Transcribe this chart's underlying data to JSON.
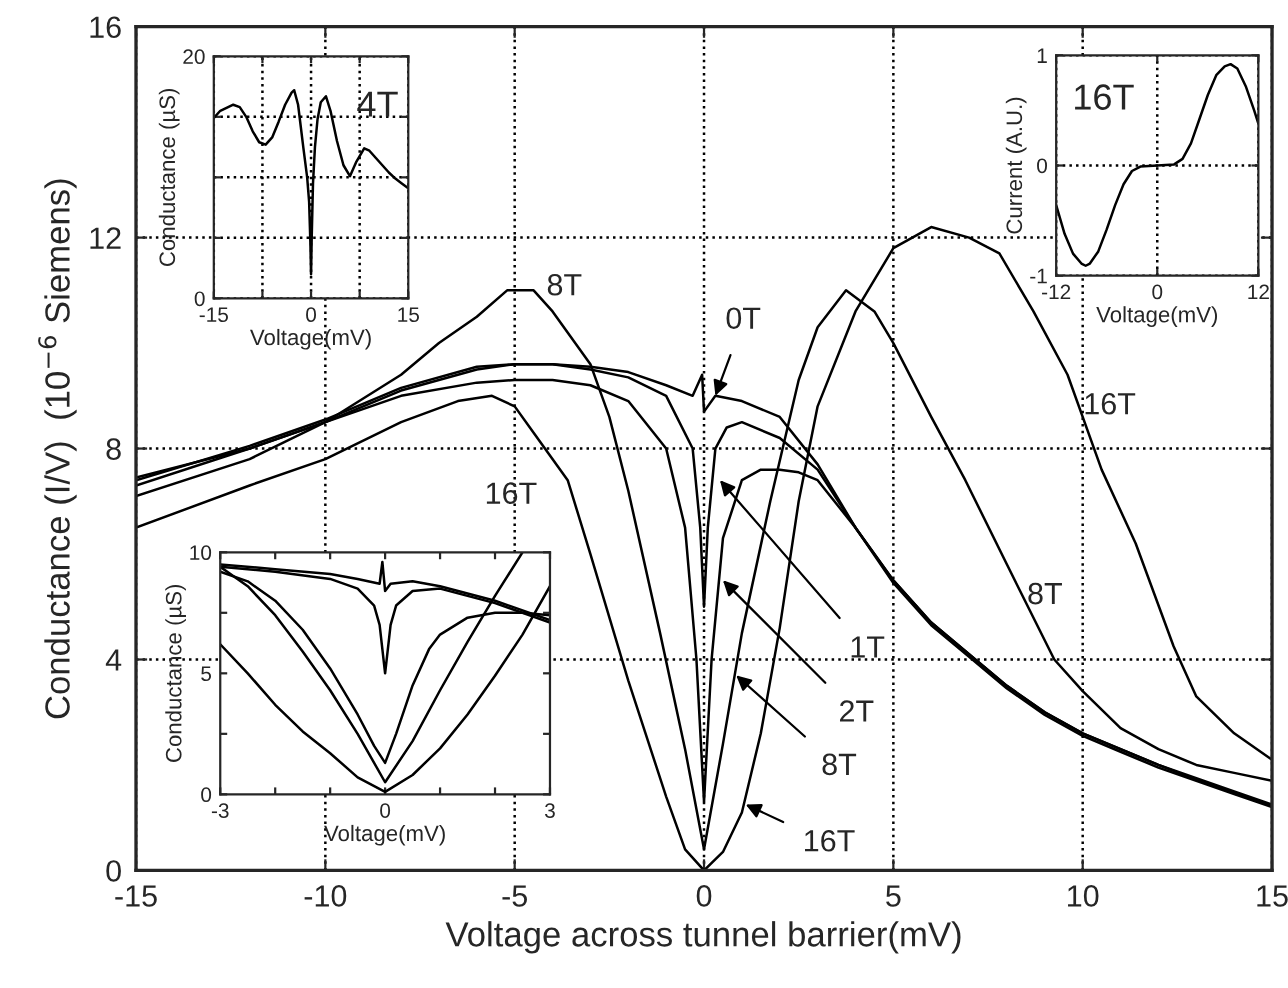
{
  "chart_data": [
    {
      "type": "line",
      "xlabel": "Voltage across tunnel barrier(mV)",
      "ylabel": "Conductance (I/V)  (10$^{−6}$ Siemens)",
      "xlim": [
        -15,
        15
      ],
      "ylim": [
        0,
        16
      ],
      "xticks": [
        -15,
        -10,
        -5,
        0,
        5,
        10,
        15
      ],
      "yticks": [
        0,
        4,
        8,
        12,
        16
      ],
      "grid": true,
      "series": [
        {
          "color": "#000000",
          "x": [
            -15,
            -12,
            -10,
            -8,
            -6,
            -5,
            -4,
            -3,
            -2,
            -1,
            -0.3,
            -0.05,
            0,
            0.3,
            1,
            2,
            3,
            4,
            5,
            6,
            7,
            8,
            9,
            10,
            11,
            12,
            13,
            14,
            15
          ],
          "values": [
            7.45,
            8.0,
            8.5,
            9.1,
            9.5,
            9.6,
            9.6,
            9.55,
            9.45,
            9.2,
            9.0,
            9.4,
            8.7,
            9.0,
            8.9,
            8.6,
            7.7,
            6.5,
            5.5,
            4.7,
            4.1,
            3.5,
            3.0,
            2.6,
            2.3,
            2.0,
            1.75,
            1.5,
            1.25
          ]
        },
        {
          "color": "#000000",
          "x": [
            -15,
            -12,
            -10,
            -8,
            -6,
            -5,
            -4,
            -3,
            -2,
            -1,
            -0.3,
            -0.1,
            0,
            0.1,
            0.3,
            0.6,
            1,
            2,
            3,
            4,
            5,
            6,
            7,
            8,
            9,
            10,
            11,
            12,
            13,
            14,
            15
          ],
          "values": [
            7.4,
            8.05,
            8.55,
            9.15,
            9.55,
            9.6,
            9.6,
            9.5,
            9.35,
            9.0,
            8.0,
            6.5,
            5.0,
            6.5,
            8.0,
            8.4,
            8.5,
            8.2,
            7.6,
            6.5,
            5.5,
            4.7,
            4.1,
            3.5,
            3.0,
            2.6,
            2.3,
            2.0,
            1.72,
            1.47,
            1.22
          ]
        },
        {
          "color": "#000000",
          "x": [
            -15,
            -12,
            -10,
            -8,
            -6,
            -5,
            -4,
            -3,
            -2,
            -1,
            -0.5,
            -0.2,
            0,
            0.2,
            0.5,
            1,
            1.5,
            2,
            2.5,
            3,
            4,
            5,
            6,
            7,
            8,
            9,
            10,
            11,
            12,
            13,
            14,
            15
          ],
          "values": [
            7.3,
            8.0,
            8.5,
            9.0,
            9.25,
            9.3,
            9.3,
            9.2,
            8.9,
            8.0,
            6.5,
            4.0,
            1.3,
            4.0,
            6.3,
            7.4,
            7.6,
            7.6,
            7.55,
            7.4,
            6.5,
            5.45,
            4.65,
            4.05,
            3.45,
            2.95,
            2.55,
            2.25,
            1.95,
            1.7,
            1.45,
            1.2
          ]
        },
        {
          "color": "#000000",
          "x": [
            -15,
            -12,
            -10,
            -8,
            -7,
            -6,
            -5.2,
            -4.5,
            -4,
            -3,
            -2.5,
            -2,
            -1.16,
            -0.5,
            0,
            0.5,
            1,
            1.75,
            2.5,
            3,
            3.75,
            4.5,
            5,
            6,
            6.9,
            8,
            9.25,
            10,
            11,
            12,
            13,
            14,
            15
          ],
          "values": [
            7.1,
            7.8,
            8.5,
            9.4,
            10.0,
            10.5,
            11.0,
            11.0,
            10.6,
            9.6,
            8.6,
            7.2,
            4.5,
            2.3,
            0.4,
            2.4,
            4.5,
            7.0,
            9.3,
            10.3,
            11.0,
            10.6,
            10.0,
            8.6,
            7.4,
            5.8,
            4.0,
            3.4,
            2.7,
            2.3,
            2.0,
            1.85,
            1.7
          ]
        },
        {
          "color": "#000000",
          "x": [
            -15,
            -12,
            -10,
            -8,
            -6.5,
            -5.6,
            -5,
            -4.5,
            -3.6,
            -3,
            -2,
            -1,
            -0.5,
            0,
            0.5,
            1,
            1.5,
            2,
            2.5,
            3,
            4,
            5,
            6,
            7,
            7.8,
            8.7,
            9.6,
            10.5,
            11.4,
            12.4,
            13,
            14,
            15
          ],
          "values": [
            6.5,
            7.3,
            7.8,
            8.5,
            8.9,
            9.0,
            8.8,
            8.3,
            7.4,
            6.0,
            3.6,
            1.4,
            0.4,
            0.0,
            0.35,
            1.1,
            2.6,
            4.6,
            7.0,
            8.8,
            10.6,
            11.8,
            12.2,
            12.0,
            11.7,
            10.6,
            9.4,
            7.6,
            6.2,
            4.25,
            3.3,
            2.6,
            2.1
          ]
        }
      ],
      "annotations": [
        "8T",
        {
          "text": "0T",
          "x": 0.3,
          "y": 9.0
        },
        "16T",
        "16T",
        "8T",
        {
          "text": "1T",
          "x": 0.42,
          "y": 7.4
        },
        {
          "text": "2T",
          "x": 0.5,
          "y": 5.5
        },
        {
          "text": "8T",
          "x": 0.85,
          "y": 3.7
        },
        {
          "text": "16T",
          "x": 1.1,
          "y": 1.25
        }
      ]
    },
    {
      "type": "line",
      "xlabel": "Voltage(mV)",
      "ylabel": "Conductance (µS)",
      "xlim": [
        -15,
        15
      ],
      "ylim": [
        0,
        20
      ],
      "xticks": [
        -15,
        {
          "value": -7.5,
          "label": null
        },
        0,
        {
          "value": 7.5,
          "label": null
        },
        15
      ],
      "yticks": [
        0,
        {
          "value": 5,
          "label": null
        },
        {
          "value": 10,
          "label": null
        },
        {
          "value": 15,
          "label": null
        },
        20
      ],
      "grid": true,
      "series": [
        {
          "color": "#000000",
          "x": [
            -15,
            -14,
            -12,
            -11,
            -10,
            -9,
            -8,
            -7,
            -6,
            -5,
            -4,
            -3,
            -2.6,
            -2,
            -1.2,
            -0.6,
            -0.3,
            -0.1,
            0,
            0.1,
            0.3,
            0.6,
            1,
            1.5,
            2.3,
            3,
            4,
            5,
            6,
            7,
            8.2,
            9,
            10,
            11,
            12,
            13,
            14,
            15
          ],
          "values": [
            14.9,
            15.5,
            16.0,
            15.8,
            15.0,
            13.8,
            12.9,
            12.7,
            13.3,
            14.6,
            16.0,
            17.0,
            17.2,
            16.0,
            12.5,
            10.0,
            8.0,
            4.5,
            2.0,
            5.0,
            9.5,
            12.5,
            14.8,
            16.2,
            16.7,
            15.5,
            13.0,
            11.0,
            10.1,
            11.3,
            12.4,
            12.2,
            11.6,
            11.0,
            10.4,
            9.9,
            9.5,
            9.1
          ]
        }
      ],
      "annotations": [
        "4T"
      ]
    },
    {
      "type": "line",
      "xlabel": "Voltage(mV)",
      "ylabel": "Current (A.U.)",
      "xlim": [
        -12,
        12
      ],
      "ylim": [
        -1,
        1
      ],
      "xticks": [
        -12,
        0,
        12
      ],
      "yticks": [
        -1,
        0,
        1
      ],
      "grid": true,
      "series": [
        {
          "color": "#000000",
          "x": [
            -12,
            -11,
            -10,
            -9,
            -8.5,
            -8,
            -7,
            -6,
            -5,
            -4,
            -3,
            -2,
            0,
            2,
            3,
            4,
            5,
            6,
            7,
            8,
            8.7,
            9.5,
            10.5,
            11.5,
            12
          ],
          "values": [
            -0.36,
            -0.62,
            -0.8,
            -0.89,
            -0.91,
            -0.89,
            -0.78,
            -0.58,
            -0.36,
            -0.17,
            -0.05,
            -0.01,
            0,
            0.01,
            0.06,
            0.2,
            0.42,
            0.64,
            0.82,
            0.9,
            0.92,
            0.88,
            0.72,
            0.5,
            0.38
          ]
        }
      ],
      "annotations": [
        "16T"
      ]
    },
    {
      "type": "line",
      "xlabel": "Voltage(mV)",
      "ylabel": "Conductance (µS)",
      "xlim": [
        -3,
        3
      ],
      "ylim": [
        0,
        10
      ],
      "xticks": [
        -3,
        {
          "value": -2,
          "label": null
        },
        {
          "value": -1,
          "label": null
        },
        0,
        {
          "value": 1,
          "label": null
        },
        {
          "value": 2,
          "label": null
        },
        3
      ],
      "yticks": [
        0,
        {
          "value": 2.5,
          "label": null
        },
        5,
        {
          "value": 7.5,
          "label": null
        },
        10
      ],
      "series": [
        {
          "color": "#000000",
          "x": [
            -3,
            -2,
            -1,
            -0.5,
            -0.1,
            -0.05,
            0,
            0.1,
            0.5,
            1,
            2,
            3
          ],
          "values": [
            9.5,
            9.3,
            9.1,
            8.9,
            8.7,
            9.6,
            8.4,
            8.7,
            8.8,
            8.6,
            8.0,
            7.2
          ]
        },
        {
          "color": "#000000",
          "x": [
            -3,
            -2,
            -1,
            -0.5,
            -0.2,
            -0.1,
            0,
            0.1,
            0.2,
            0.5,
            1,
            2,
            3
          ],
          "values": [
            9.4,
            9.2,
            8.9,
            8.5,
            7.8,
            7.0,
            5.0,
            7.0,
            7.8,
            8.4,
            8.5,
            7.9,
            7.1
          ]
        },
        {
          "color": "#000000",
          "x": [
            -3,
            -2.5,
            -2,
            -1.5,
            -1,
            -0.5,
            -0.2,
            0,
            0.2,
            0.5,
            0.8,
            1,
            1.5,
            2,
            2.5,
            3
          ],
          "values": [
            9.2,
            8.8,
            8.0,
            6.8,
            5.2,
            3.3,
            2.0,
            1.3,
            2.5,
            4.5,
            6.0,
            6.6,
            7.3,
            7.5,
            7.5,
            7.4
          ]
        },
        {
          "color": "#000000",
          "x": [
            -3,
            -2.5,
            -2,
            -1.5,
            -1,
            -0.5,
            0,
            0.5,
            1,
            1.5,
            2,
            2.5
          ],
          "values": [
            9.4,
            8.6,
            7.4,
            5.9,
            4.3,
            2.5,
            0.5,
            2.2,
            4.3,
            6.3,
            8.2,
            10.0
          ]
        },
        {
          "color": "#000000",
          "x": [
            -3,
            -2.5,
            -2,
            -1.5,
            -1,
            -0.5,
            0,
            0.5,
            1,
            1.5,
            2,
            2.5,
            3
          ],
          "values": [
            6.2,
            5.0,
            3.7,
            2.6,
            1.7,
            0.7,
            0.1,
            0.8,
            1.9,
            3.3,
            4.9,
            6.6,
            8.6
          ]
        }
      ]
    }
  ]
}
